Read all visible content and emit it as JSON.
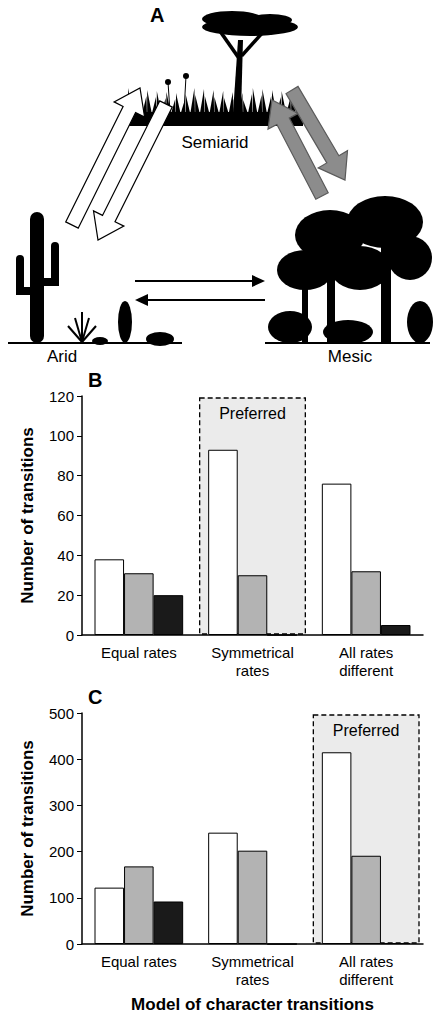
{
  "diagram": {
    "panel": "A",
    "nodes": [
      {
        "label": "Semiarid"
      },
      {
        "label": "Arid"
      },
      {
        "label": "Mesic"
      }
    ]
  },
  "chart_data": [
    {
      "type": "bar",
      "panel": "B",
      "categories": [
        "Equal rates",
        "Symmetrical rates",
        "All rates different"
      ],
      "series": [
        {
          "color": "#ffffff",
          "values": [
            38,
            93,
            76
          ]
        },
        {
          "color": "#b3b3b3",
          "values": [
            31,
            30,
            32
          ]
        },
        {
          "color": "#1a1a1a",
          "values": [
            20,
            0,
            5
          ]
        }
      ],
      "ylabel": "Number of transitions",
      "ylim": [
        0,
        120
      ],
      "yticks": [
        0,
        20,
        40,
        60,
        80,
        100,
        120
      ],
      "grid": false,
      "annotations": [
        {
          "text": "Preferred",
          "category": "Symmetrical rates"
        }
      ]
    },
    {
      "type": "bar",
      "panel": "C",
      "categories": [
        "Equal rates",
        "Symmetrical rates",
        "All rates different"
      ],
      "series": [
        {
          "color": "#ffffff",
          "values": [
            122,
            241,
            415
          ]
        },
        {
          "color": "#b3b3b3",
          "values": [
            168,
            202,
            191
          ]
        },
        {
          "color": "#1a1a1a",
          "values": [
            92,
            0,
            2
          ]
        }
      ],
      "xlabel": "Model of character transitions",
      "ylabel": "Number of transitions",
      "ylim": [
        0,
        500
      ],
      "yticks": [
        0,
        100,
        200,
        300,
        400,
        500
      ],
      "grid": false,
      "annotations": [
        {
          "text": "Preferred",
          "category": "All rates different"
        }
      ]
    }
  ]
}
